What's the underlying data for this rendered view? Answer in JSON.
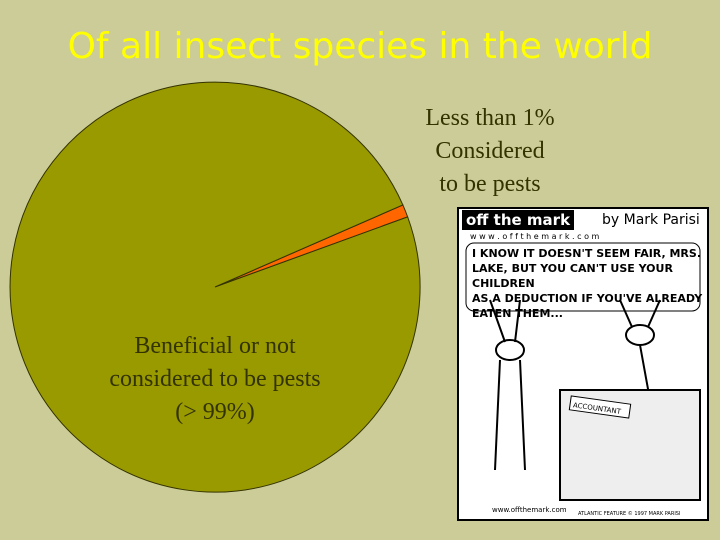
{
  "chart_data": {
    "type": "pie",
    "title": "Of all insect species in the world",
    "categories": [
      "Less than 1%\nConsidered\nto be pests",
      "Beneficial or not\nconsidered to be pests\n(> 99%)"
    ],
    "values": [
      1,
      99
    ],
    "colors": [
      "#ff6600",
      "#999900"
    ]
  },
  "cartoon": {
    "brand": "off the mark",
    "byline": "by Mark Parisi",
    "url": "w w w . o f f t h e m a r k . c o m",
    "caption": "I KNOW IT DOESN'T SEEM FAIR, MRS.\nLAKE, BUT YOU CAN'T USE YOUR CHILDREN\nAS A DEDUCTION IF YOU'VE ALREADY\nEATEN THEM...",
    "sign": "ACCOUNTANT",
    "footer": "www.offthemark.com",
    "credit": "ATLANTIC FEATURE © 1997 MARK PARISI"
  }
}
